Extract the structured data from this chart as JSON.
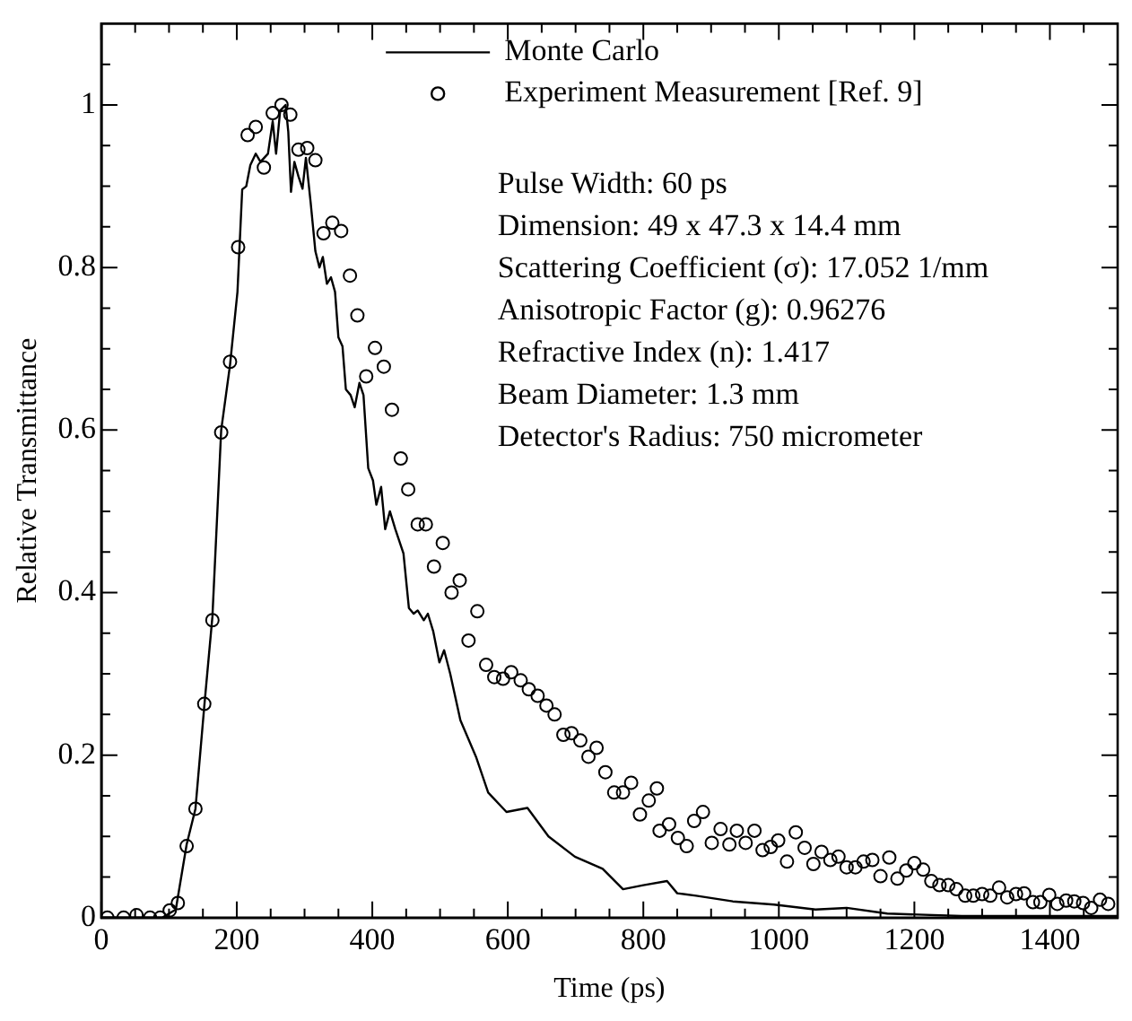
{
  "chart_data": {
    "type": "line",
    "xlabel": "Time (ps)",
    "ylabel": "Relative Transmittance",
    "xlim": [
      0,
      1500
    ],
    "xticks": [
      0,
      {
        "value": 50,
        "label": null
      },
      200,
      {
        "value": 100,
        "label": null
      },
      {
        "value": 150,
        "label": null
      },
      {
        "value": 250,
        "label": null
      },
      {
        "value": 300,
        "label": null
      },
      {
        "value": 350,
        "label": null
      },
      400,
      {
        "value": 450,
        "label": null
      },
      {
        "value": 500,
        "label": null
      },
      {
        "value": 550,
        "label": null
      },
      600,
      {
        "value": 650,
        "label": null
      },
      {
        "value": 700,
        "label": null
      },
      {
        "value": 750,
        "label": null
      },
      800,
      {
        "value": 850,
        "label": null
      },
      {
        "value": 900,
        "label": null
      },
      {
        "value": 950,
        "label": null
      },
      1000,
      {
        "value": 1050,
        "label": null
      },
      {
        "value": 1100,
        "label": null
      },
      {
        "value": 1150,
        "label": null
      },
      1200,
      {
        "value": 1250,
        "label": null
      },
      {
        "value": 1300,
        "label": null
      },
      {
        "value": 1350,
        "label": null
      },
      1400,
      {
        "value": 1450,
        "label": null
      }
    ],
    "ylim": [
      0,
      1.1
    ],
    "yticks": [
      0,
      {
        "value": 0.05,
        "label": null
      },
      {
        "value": 0.1,
        "label": null
      },
      {
        "value": 0.15,
        "label": null
      },
      0.2,
      {
        "value": 0.25,
        "label": null
      },
      {
        "value": 0.3,
        "label": null
      },
      {
        "value": 0.35,
        "label": null
      },
      0.4,
      {
        "value": 0.45,
        "label": null
      },
      {
        "value": 0.5,
        "label": null
      },
      {
        "value": 0.55,
        "label": null
      },
      0.6,
      {
        "value": 0.65,
        "label": null
      },
      {
        "value": 0.7,
        "label": null
      },
      {
        "value": 0.75,
        "label": null
      },
      0.8,
      {
        "value": 0.85,
        "label": null
      },
      {
        "value": 0.9,
        "label": null
      },
      {
        "value": 0.95,
        "label": null
      },
      1,
      {
        "value": 1.05,
        "label": null
      }
    ],
    "grid": false,
    "legend": "top",
    "annotations": [
      "Pulse Width: 60 ps",
      "Dimension: 49 x 47.3 x 14.4 mm",
      "Scattering Coefficient (σ): 17.052 1/mm",
      "Anisotropic Factor (g): 0.96276",
      "Refractive Index (n): 1.417",
      "Beam Diameter: 1.3 mm",
      "Detector's Radius: 750 micrometer"
    ],
    "series": [
      {
        "name": "Monte Carlo",
        "color": "#000000",
        "marker": "none",
        "line_style": "solid",
        "x": [
          0,
          60,
          90,
          110,
          126,
          139,
          152,
          164,
          177,
          190,
          201,
          208,
          214,
          220,
          228,
          235,
          246,
          253,
          258,
          264,
          272,
          276,
          280,
          285,
          291,
          297,
          302,
          309,
          316,
          322,
          327,
          333,
          339,
          345,
          350,
          356,
          361,
          368,
          374,
          381,
          387,
          394,
          401,
          406,
          413,
          419,
          426,
          434,
          440,
          446,
          454,
          461,
          467,
          476,
          482,
          490,
          499,
          506,
          515,
          530,
          553,
          571,
          598,
          629,
          660,
          699,
          740,
          770,
          800,
          835,
          850,
          878,
          932,
          993,
          1054,
          1100,
          1160,
          1270,
          1400,
          1500
        ],
        "values": [
          0,
          0,
          0,
          0.01,
          0.09,
          0.134,
          0.26,
          0.37,
          0.6,
          0.68,
          0.77,
          0.896,
          0.9,
          0.926,
          0.94,
          0.93,
          0.94,
          0.98,
          0.94,
          0.993,
          1.0,
          0.967,
          0.893,
          0.93,
          0.912,
          0.897,
          0.935,
          0.88,
          0.82,
          0.8,
          0.813,
          0.78,
          0.788,
          0.77,
          0.714,
          0.703,
          0.65,
          0.643,
          0.628,
          0.658,
          0.643,
          0.553,
          0.538,
          0.508,
          0.53,
          0.478,
          0.5,
          0.478,
          0.463,
          0.448,
          0.381,
          0.374,
          0.378,
          0.366,
          0.374,
          0.352,
          0.314,
          0.329,
          0.3,
          0.243,
          0.198,
          0.154,
          0.13,
          0.135,
          0.1,
          0.075,
          0.06,
          0.035,
          0.04,
          0.045,
          0.03,
          0.027,
          0.02,
          0.016,
          0.01,
          0.012,
          0.005,
          0.002,
          0.002,
          0.002
        ]
      },
      {
        "name": "Experiment Measurement [Ref. 9]",
        "type": "scatter",
        "color": "#000000",
        "marker": "circle",
        "x": [
          9,
          33,
          52,
          72,
          87,
          101,
          113,
          126,
          139,
          152,
          164,
          177,
          190,
          202,
          216,
          228,
          240,
          253,
          266,
          279,
          291,
          304,
          316,
          328,
          341,
          354,
          367,
          378,
          391,
          404,
          417,
          429,
          442,
          453,
          467,
          479,
          491,
          504,
          517,
          529,
          542,
          555,
          568,
          580,
          593,
          605,
          619,
          631,
          644,
          657,
          669,
          682,
          694,
          707,
          719,
          731,
          744,
          757,
          770,
          782,
          795,
          808,
          820,
          824,
          838,
          851,
          864,
          875,
          888,
          901,
          914,
          927,
          938,
          951,
          964,
          976,
          988,
          999,
          1012,
          1025,
          1038,
          1051,
          1063,
          1076,
          1088,
          1100,
          1113,
          1125,
          1138,
          1150,
          1163,
          1175,
          1188,
          1200,
          1213,
          1225,
          1237,
          1250,
          1262,
          1275,
          1287,
          1300,
          1312,
          1325,
          1337,
          1350,
          1362,
          1375,
          1386,
          1399,
          1411,
          1424,
          1436,
          1449,
          1461,
          1474,
          1486
        ],
        "values": [
          0,
          0,
          0.003,
          0,
          0,
          0.009,
          0.018,
          0.088,
          0.134,
          0.263,
          0.366,
          0.597,
          0.684,
          0.825,
          0.963,
          0.973,
          0.923,
          0.99,
          1.0,
          0.988,
          0.945,
          0.947,
          0.932,
          0.842,
          0.855,
          0.845,
          0.79,
          0.741,
          0.666,
          0.701,
          0.678,
          0.625,
          0.565,
          0.527,
          0.484,
          0.484,
          0.432,
          0.461,
          0.4,
          0.415,
          0.341,
          0.377,
          0.311,
          0.296,
          0.294,
          0.302,
          0.292,
          0.281,
          0.273,
          0.261,
          0.25,
          0.225,
          0.227,
          0.218,
          0.198,
          0.209,
          0.179,
          0.154,
          0.154,
          0.166,
          0.127,
          0.144,
          0.159,
          0.107,
          0.115,
          0.098,
          0.088,
          0.119,
          0.13,
          0.092,
          0.109,
          0.09,
          0.107,
          0.092,
          0.107,
          0.083,
          0.087,
          0.095,
          0.069,
          0.105,
          0.086,
          0.066,
          0.081,
          0.071,
          0.075,
          0.062,
          0.062,
          0.069,
          0.071,
          0.051,
          0.074,
          0.048,
          0.058,
          0.067,
          0.059,
          0.045,
          0.04,
          0.04,
          0.035,
          0.027,
          0.027,
          0.029,
          0.027,
          0.037,
          0.025,
          0.029,
          0.03,
          0.019,
          0.019,
          0.028,
          0.017,
          0.021,
          0.02,
          0.018,
          0.012,
          0.022,
          0.017
        ]
      }
    ]
  }
}
